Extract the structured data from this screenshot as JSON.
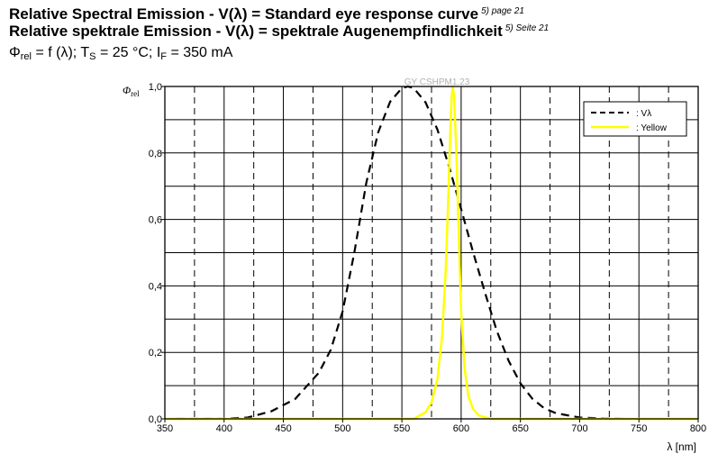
{
  "header": {
    "title_en": "Relative Spectral Emission - V(λ) = Standard eye response curve",
    "ref_en": "5) page 21",
    "title_de": "Relative spektrale Emission - V(λ) = spektrale Augenempfindlichkeit",
    "ref_de": "5) Seite 21",
    "cond_phi": "Φ",
    "cond_phi_sub": "rel",
    "cond_a": " = f (λ); T",
    "cond_t_sub": "S",
    "cond_b": " = 25 °C; I",
    "cond_i_sub": "F",
    "cond_c": " = 350 mA"
  },
  "chart_data": {
    "type": "line",
    "watermark": "GY CSHPM1.23",
    "ylabel": "Φ",
    "ylabel_sub": "rel",
    "xlabel": "λ [nm]",
    "xlim": [
      350,
      800
    ],
    "ylim": [
      0,
      1.0
    ],
    "x_ticks": [
      "350",
      "400",
      "450",
      "500",
      "550",
      "600",
      "650",
      "700",
      "750",
      "800"
    ],
    "y_ticks": [
      "0,0",
      "0,2",
      "0,4",
      "0,6",
      "0,8",
      "1,0"
    ],
    "x_tick_values": [
      350,
      400,
      450,
      500,
      550,
      600,
      650,
      700,
      750,
      800
    ],
    "y_tick_values": [
      0,
      0.2,
      0.4,
      0.6,
      0.8,
      1.0
    ],
    "grid": true,
    "legend_position": "top-right",
    "series": [
      {
        "name": "Vλ",
        "legend_label": ": Vλ",
        "color": "#000000",
        "style": "dashed",
        "x": [
          360,
          380,
          400,
          420,
          440,
          460,
          480,
          490,
          500,
          510,
          520,
          530,
          540,
          550,
          555,
          560,
          570,
          580,
          590,
          600,
          610,
          620,
          630,
          640,
          650,
          660,
          670,
          680,
          700,
          720,
          740
        ],
        "y": [
          0.0,
          0.0,
          0.0004,
          0.004,
          0.023,
          0.06,
          0.139,
          0.208,
          0.323,
          0.503,
          0.71,
          0.862,
          0.954,
          0.995,
          1.0,
          0.995,
          0.952,
          0.87,
          0.757,
          0.631,
          0.503,
          0.381,
          0.265,
          0.175,
          0.107,
          0.061,
          0.032,
          0.017,
          0.004,
          0.001,
          0.0
        ]
      },
      {
        "name": "Yellow",
        "legend_label": ": Yellow",
        "color": "#ffff00",
        "style": "solid",
        "x": [
          350,
          560,
          570,
          575,
          580,
          584,
          587,
          589,
          591,
          592,
          593,
          594,
          596,
          598,
          600,
          603,
          606,
          610,
          615,
          625,
          650,
          800
        ],
        "y": [
          0.0,
          0.0,
          0.02,
          0.05,
          0.12,
          0.25,
          0.45,
          0.65,
          0.88,
          0.97,
          1.0,
          0.97,
          0.8,
          0.55,
          0.32,
          0.15,
          0.07,
          0.03,
          0.01,
          0.0,
          0.0,
          0.0
        ]
      }
    ]
  }
}
